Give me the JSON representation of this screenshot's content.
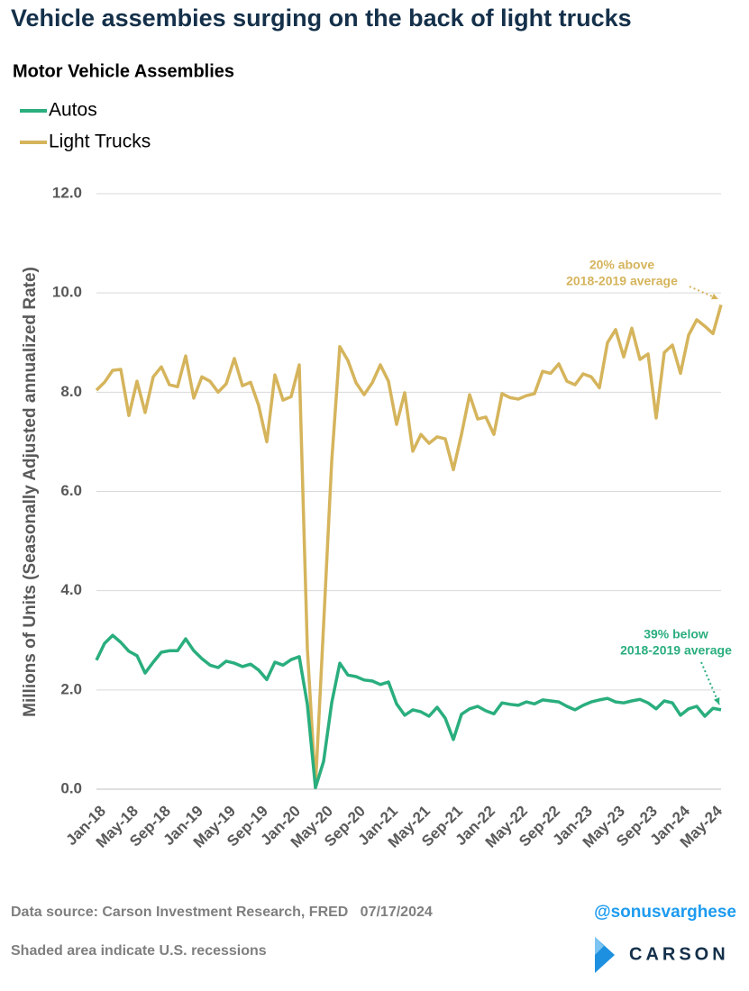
{
  "chart_data": {
    "type": "line",
    "title": "Vehicle assembies surging on the back of light trucks",
    "subtitle": "Motor Vehicle Assemblies",
    "y_label": "Millions of Units (Seasonally Adjusted annualized Rate)",
    "categories": [
      "Jan-18",
      null,
      null,
      null,
      "May-18",
      null,
      null,
      null,
      "Sep-18",
      null,
      null,
      null,
      "Jan-19",
      null,
      null,
      null,
      "May-19",
      null,
      null,
      null,
      "Sep-19",
      null,
      null,
      null,
      "Jan-20",
      null,
      null,
      null,
      "May-20",
      null,
      null,
      null,
      "Sep-20",
      null,
      null,
      null,
      "Jan-21",
      null,
      null,
      null,
      "May-21",
      null,
      null,
      null,
      "Sep-21",
      null,
      null,
      null,
      "Jan-22",
      null,
      null,
      null,
      "May-22",
      null,
      null,
      null,
      "Sep-22",
      null,
      null,
      null,
      "Jan-23",
      null,
      null,
      null,
      "May-23",
      null,
      null,
      null,
      "Sep-23",
      null,
      null,
      null,
      "Jan-24",
      null,
      null,
      null,
      "May-24",
      null
    ],
    "series": [
      {
        "name": "Autos",
        "color": "#2aae7e",
        "values": [
          2.6,
          2.94,
          3.1,
          2.96,
          2.78,
          2.69,
          2.34,
          2.56,
          2.76,
          2.79,
          2.79,
          3.03,
          2.79,
          2.63,
          2.5,
          2.45,
          2.58,
          2.54,
          2.47,
          2.52,
          2.4,
          2.21,
          2.56,
          2.5,
          2.61,
          2.67,
          1.71,
          0.03,
          0.56,
          1.74,
          2.54,
          2.3,
          2.27,
          2.2,
          2.18,
          2.11,
          2.16,
          1.72,
          1.49,
          1.6,
          1.56,
          1.47,
          1.65,
          1.43,
          1.0,
          1.51,
          1.62,
          1.67,
          1.58,
          1.52,
          1.74,
          1.71,
          1.69,
          1.76,
          1.72,
          1.8,
          1.78,
          1.76,
          1.67,
          1.6,
          1.69,
          1.76,
          1.8,
          1.83,
          1.76,
          1.74,
          1.78,
          1.81,
          1.74,
          1.62,
          1.78,
          1.74,
          1.49,
          1.62,
          1.67,
          1.47,
          1.63,
          1.6
        ]
      },
      {
        "name": "Light Trucks",
        "color": "#d5b45c",
        "values": [
          8.04,
          8.2,
          8.44,
          8.46,
          7.53,
          8.22,
          7.59,
          8.31,
          8.51,
          8.15,
          8.11,
          8.73,
          7.88,
          8.31,
          8.22,
          8.0,
          8.17,
          8.68,
          8.13,
          8.2,
          7.73,
          7.0,
          8.35,
          7.84,
          7.91,
          8.55,
          2.83,
          0.05,
          3.3,
          6.6,
          8.92,
          8.64,
          8.19,
          7.95,
          8.19,
          8.55,
          8.22,
          7.35,
          7.99,
          6.81,
          7.15,
          6.97,
          7.1,
          7.06,
          6.44,
          7.15,
          7.95,
          7.46,
          7.5,
          7.15,
          7.97,
          7.89,
          7.86,
          7.93,
          7.97,
          8.42,
          8.38,
          8.57,
          8.22,
          8.15,
          8.37,
          8.31,
          8.09,
          9.0,
          9.26,
          8.71,
          9.29,
          8.66,
          8.77,
          7.48,
          8.8,
          8.95,
          8.38,
          9.15,
          9.46,
          9.33,
          9.18,
          9.76
        ]
      }
    ],
    "ylim": [
      0,
      12
    ],
    "yticks": [
      {
        "value": 0,
        "label": "0.0"
      },
      {
        "value": 2,
        "label": "2.0"
      },
      {
        "value": 4,
        "label": "4.0"
      },
      {
        "value": 6,
        "label": "6.0"
      },
      {
        "value": 8,
        "label": "8.0"
      },
      {
        "value": 10,
        "label": "10.0"
      },
      {
        "value": 12,
        "label": "12.0"
      }
    ],
    "grid": true,
    "annotations": [
      {
        "lines": [
          "20% above",
          "2018-2019 average"
        ],
        "color": "#d5b45c"
      },
      {
        "lines": [
          "39% below",
          "2018-2019 average"
        ],
        "color": "#2aae7e"
      }
    ]
  },
  "footer": {
    "source": "Data source: Carson Investment Research, FRED   07/17/2024",
    "handle": "@sonusvarghese",
    "note": "Shaded area indicate U.S. recessions",
    "logo": "CARSON"
  }
}
